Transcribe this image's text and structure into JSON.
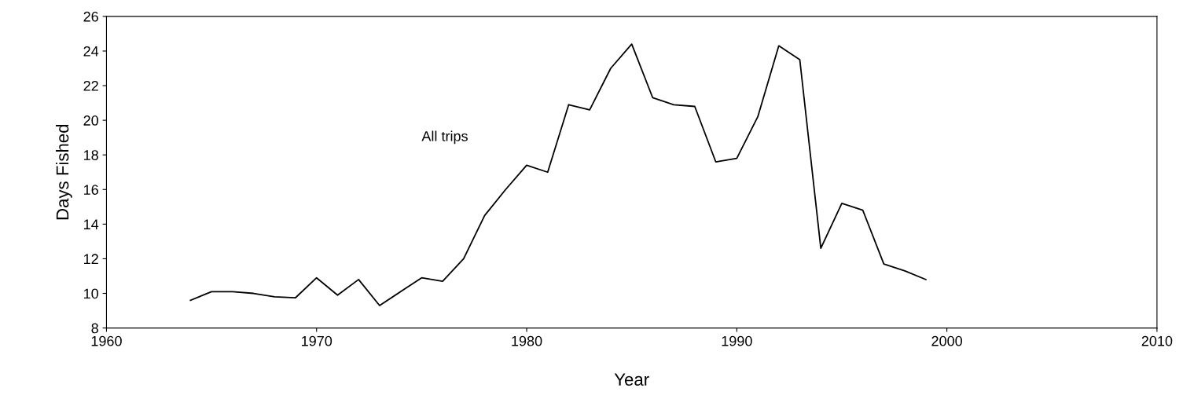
{
  "chart_data": {
    "type": "line",
    "xlabel": "Year",
    "ylabel": "Days Fished",
    "x": [
      1964,
      1965,
      1966,
      1967,
      1968,
      1969,
      1970,
      1971,
      1972,
      1973,
      1974,
      1975,
      1976,
      1977,
      1978,
      1979,
      1980,
      1981,
      1982,
      1983,
      1984,
      1985,
      1986,
      1987,
      1988,
      1989,
      1990,
      1991,
      1992,
      1993,
      1994,
      1995,
      1996,
      1997,
      1998,
      1999
    ],
    "series": [
      {
        "color": "#000000",
        "values": [
          9.6,
          10.1,
          10.1,
          10.0,
          9.8,
          9.75,
          10.9,
          9.9,
          10.8,
          9.3,
          10.1,
          10.9,
          10.7,
          12.0,
          14.5,
          16.0,
          17.4,
          17.0,
          20.9,
          20.6,
          23.0,
          24.4,
          21.3,
          20.9,
          20.8,
          17.6,
          17.8,
          20.2,
          24.3,
          23.5,
          12.6,
          15.2,
          14.8,
          11.7,
          11.3,
          10.8
        ]
      }
    ],
    "annotations": [
      "All trips"
    ],
    "xlim": [
      1960,
      2010
    ],
    "xticks": [
      1960,
      1970,
      1980,
      1990,
      2000,
      2010
    ],
    "ylim": [
      8,
      26
    ],
    "yticks": [
      8,
      10,
      12,
      14,
      16,
      18,
      20,
      22,
      24,
      26
    ],
    "grid": false,
    "legend": false,
    "marker": "none",
    "line_style": "solid"
  }
}
